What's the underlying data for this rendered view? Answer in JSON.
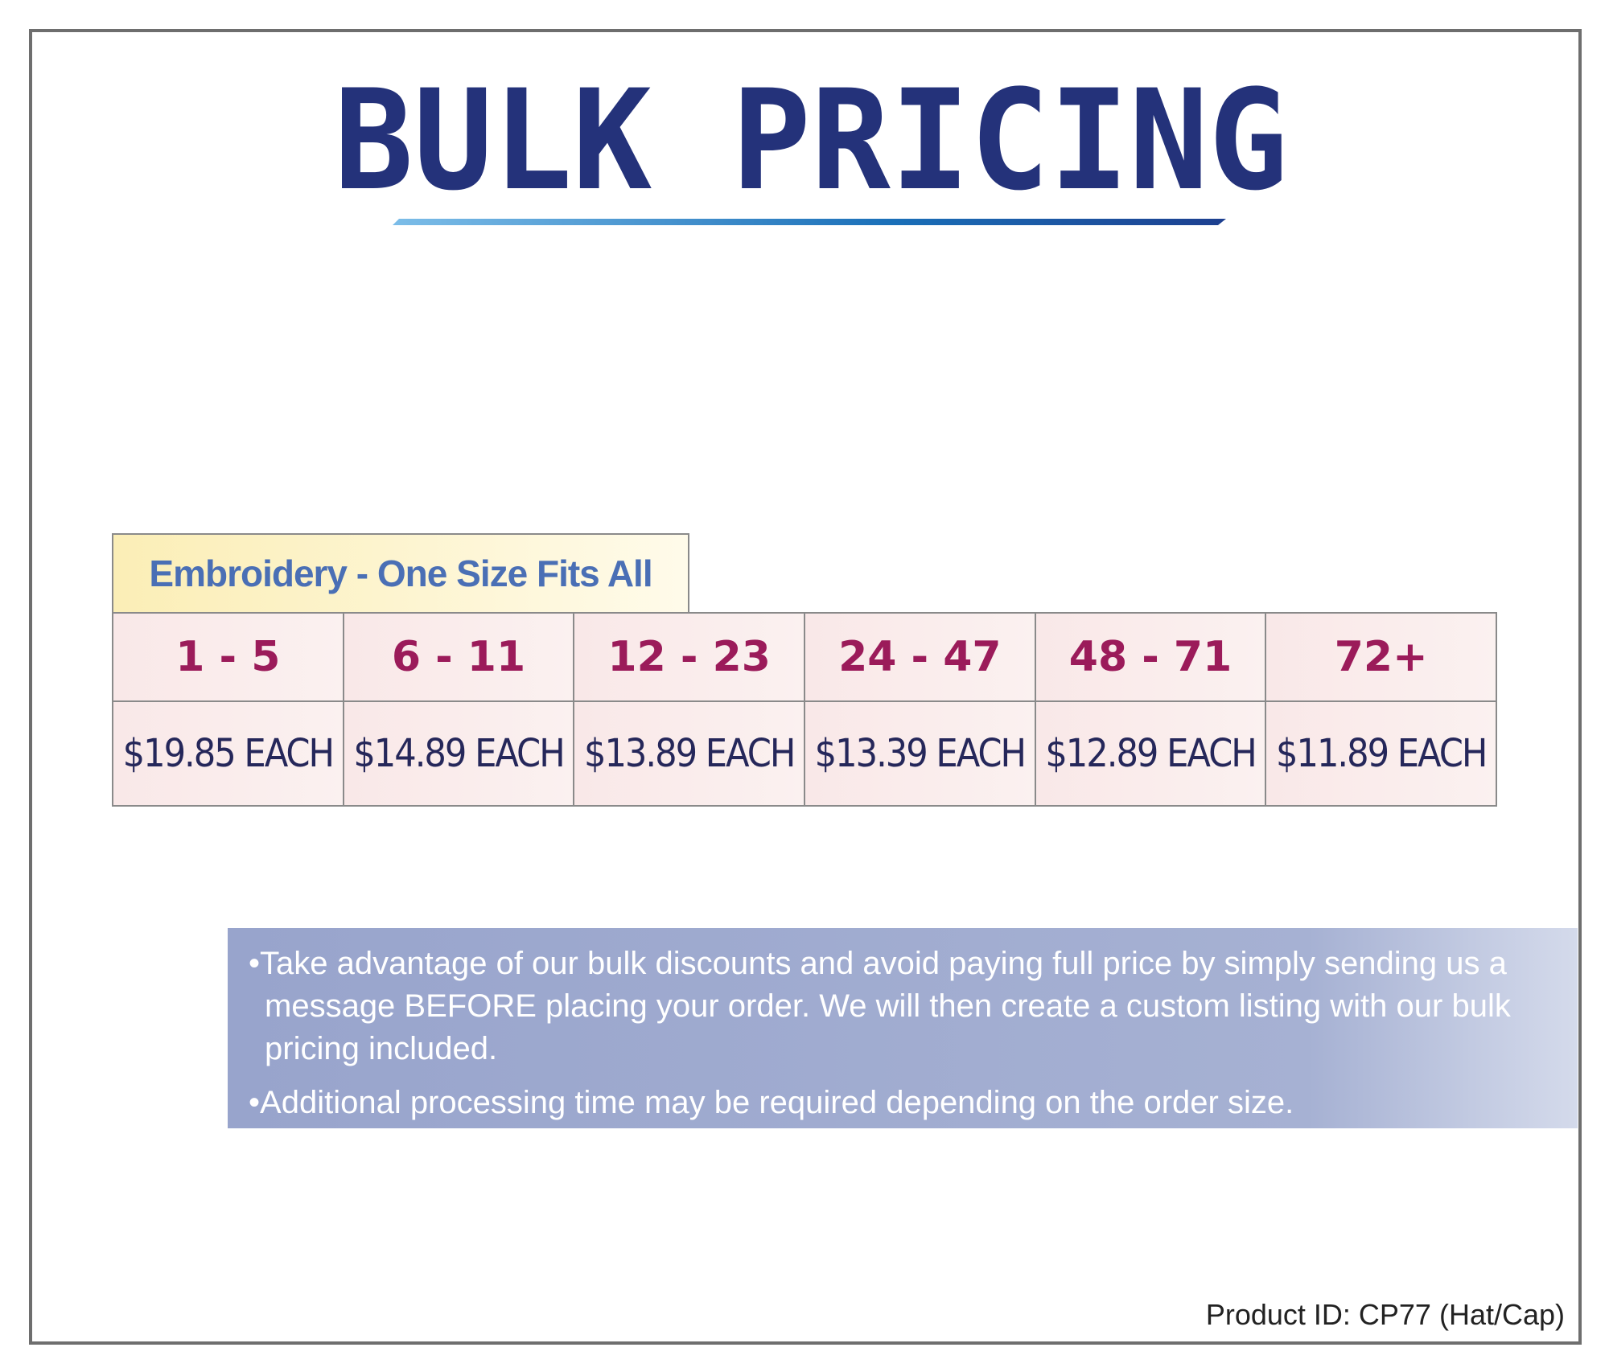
{
  "header": {
    "title": "BULK PRICING"
  },
  "table": {
    "caption": "Embroidery - One Size Fits All",
    "quantities": [
      "1 - 5",
      "6 - 11",
      "12 - 23",
      "24 - 47",
      "48 - 71",
      "72+"
    ],
    "prices": [
      "$19.85 EACH",
      "$14.89 EACH",
      "$13.89 EACH",
      "$13.39 EACH",
      "$12.89 EACH",
      "$11.89 EACH"
    ]
  },
  "notes": [
    "Take advantage of our bulk discounts and avoid paying full price by simply sending us a message BEFORE placing your order. We will then create a custom listing with our bulk pricing included.",
    "Additional processing time may be required depending on the order size."
  ],
  "footer": {
    "product_id": "Product ID: CP77 (Hat/Cap)"
  }
}
